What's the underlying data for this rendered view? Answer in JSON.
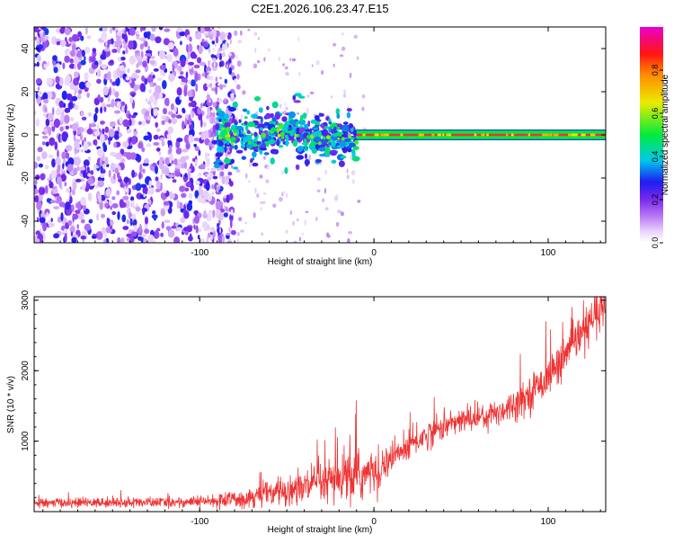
{
  "page_title": "C2E1.2026.106.23.47.E15",
  "chart_data": [
    {
      "type": "heatmap",
      "title": "C2E1.2026.106.23.47.E15",
      "xlabel": "Height of straight line (km)",
      "ylabel": "Frequency (Hz)",
      "xlim": [
        -195,
        133
      ],
      "ylim": [
        -50,
        50
      ],
      "xticks": [
        -100,
        0,
        100
      ],
      "xtick_labels": [
        "-100",
        "0",
        "100"
      ],
      "yticks": [
        -40,
        -20,
        0,
        20,
        40
      ],
      "ytick_labels": [
        "-40",
        "-20",
        "0",
        "20",
        "40"
      ],
      "grid": false,
      "colorbar": {
        "label": "Normalized spectral amplitude",
        "range": [
          0,
          1
        ],
        "ticks": [
          0.0,
          0.2,
          0.4,
          0.6,
          0.8
        ],
        "tick_labels": [
          "0.0",
          "0.2",
          "0.4",
          "0.6",
          "0.8"
        ],
        "colormap": "rainbow (white-violet-blue-cyan-green-yellow-red-magenta)",
        "placement": "right"
      },
      "features": {
        "noise_region_x": [
          -195,
          -90
        ],
        "noise_amplitude_range": [
          0.0,
          0.3
        ],
        "transition_region_x": [
          -90,
          -10
        ],
        "transition_peak_amplitude": 0.45,
        "signal_band_x": [
          -10,
          133
        ],
        "signal_band_frequency": 0,
        "signal_band_halfwidth_hz": 2,
        "signal_band_amplitude": 0.9
      }
    },
    {
      "type": "line",
      "xlabel": "Height of straight line (km)",
      "ylabel": "SNR (10 * v/v)",
      "xlim": [
        -195,
        133
      ],
      "ylim": [
        0,
        3050
      ],
      "xticks": [
        -100,
        0,
        100
      ],
      "xtick_labels": [
        "-100",
        "0",
        "100"
      ],
      "yticks": [
        1000,
        2000,
        3000
      ],
      "ytick_labels": [
        "1000",
        "2000",
        "3000"
      ],
      "grid": false,
      "color": "#ee3333",
      "series": [
        {
          "x": [
            -195,
            -180,
            -160,
            -140,
            -120,
            -100,
            -90,
            -80,
            -70,
            -60,
            -50,
            -40,
            -30,
            -20,
            -10,
            0,
            10,
            20,
            30,
            40,
            50,
            60,
            70,
            80,
            90,
            100,
            110,
            120,
            133
          ],
          "values": [
            120,
            125,
            128,
            130,
            132,
            140,
            150,
            175,
            215,
            255,
            300,
            345,
            385,
            440,
            495,
            560,
            750,
            930,
            1090,
            1210,
            1290,
            1340,
            1400,
            1520,
            1690,
            1920,
            2220,
            2550,
            2900
          ]
        }
      ],
      "noise_amplitude": [
        [
          -195,
          60
        ],
        [
          -100,
          70
        ],
        [
          -80,
          110
        ],
        [
          -60,
          170
        ],
        [
          -40,
          230
        ],
        [
          -20,
          320
        ],
        [
          -10,
          380
        ],
        [
          0,
          260
        ],
        [
          20,
          200
        ],
        [
          50,
          160
        ],
        [
          80,
          200
        ],
        [
          110,
          260
        ],
        [
          133,
          300
        ]
      ]
    }
  ]
}
